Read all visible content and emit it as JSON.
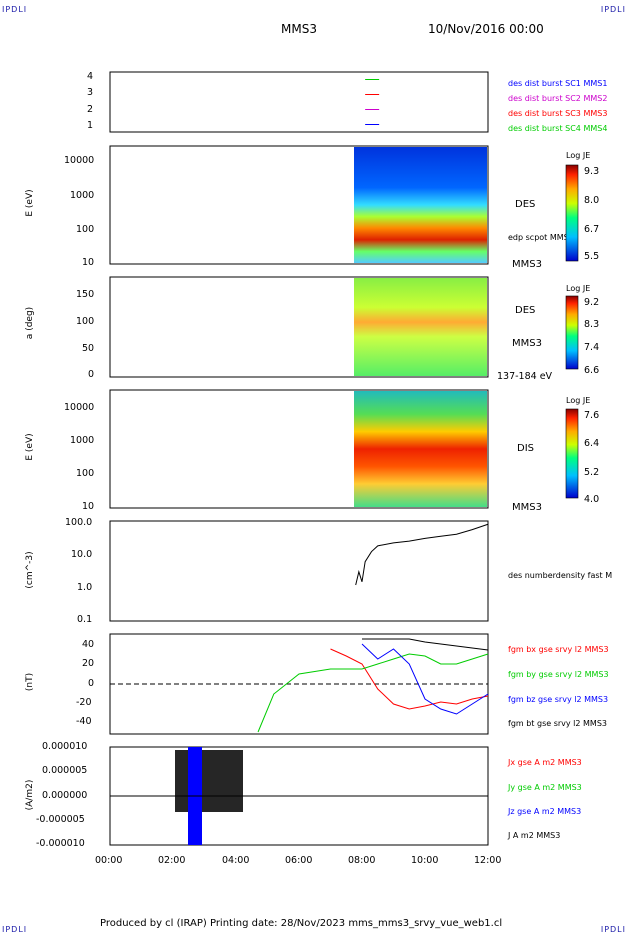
{
  "header": {
    "corner_tl": "IPDLI",
    "corner_tr": "IPDLI",
    "corner_bl": "IPDLI",
    "corner_br": "IPDLI",
    "mission": "MMS3",
    "date": "10/Nov/2016 00:00"
  },
  "footer": "Produced by cl (IRAP)   Printing date: 28/Nov/2023   mms_mms3_srvy_vue_web1.cl",
  "colors": {
    "axis": "#000000",
    "p1": "#0000ff",
    "p2": "#cc00cc",
    "p3": "#ff0000",
    "p4": "#00cc00"
  },
  "chart_data": [
    {
      "type": "line",
      "name": "availability",
      "yticks": [
        "1",
        "2",
        "3",
        "4"
      ],
      "series": [
        {
          "name": "des dist burst SC1 MMS1",
          "color": "#0000ff",
          "x_hours": [
            8.1,
            8.7
          ],
          "y": 1
        },
        {
          "name": "des dist burst SC2 MMS2",
          "color": "#cc00cc",
          "x_hours": [
            8.1,
            8.7
          ],
          "y": 2
        },
        {
          "name": "des dist burst SC3 MMS3",
          "color": "#ff0000",
          "x_hours": [
            8.1,
            8.7
          ],
          "y": 3
        },
        {
          "name": "des dist burst SC4 MMS4",
          "color": "#00cc00",
          "x_hours": [
            8.1,
            8.7
          ],
          "y": 4
        }
      ]
    },
    {
      "type": "heatmap",
      "name": "des-energy",
      "ylabel": "E (eV)",
      "yticks": [
        "10",
        "100",
        "1000",
        "10000"
      ],
      "right_labels": [
        "DES",
        "edp scpot MMS3",
        "MMS3"
      ],
      "colorbar": {
        "title": "Log JE",
        "ticks": [
          "9.3",
          "8.0",
          "6.7",
          "5.5"
        ],
        "range": [
          5.5,
          9.3
        ]
      },
      "data_start_hour": 7.7
    },
    {
      "type": "heatmap",
      "name": "des-pitch",
      "ylabel": "a (deg)",
      "yticks": [
        "0",
        "50",
        "100",
        "150"
      ],
      "right_labels": [
        "DES",
        "MMS3",
        "137-184 eV"
      ],
      "colorbar": {
        "title": "Log JE",
        "ticks": [
          "9.2",
          "8.3",
          "7.4",
          "6.6"
        ],
        "range": [
          6.6,
          9.2
        ]
      },
      "data_start_hour": 7.7
    },
    {
      "type": "heatmap",
      "name": "dis-energy",
      "ylabel": "E (eV)",
      "yticks": [
        "10",
        "100",
        "1000",
        "10000"
      ],
      "right_labels": [
        "DIS",
        "MMS3"
      ],
      "colorbar": {
        "title": "Log JE",
        "ticks": [
          "7.6",
          "6.4",
          "5.2",
          "4.0"
        ],
        "range": [
          4.0,
          7.6
        ]
      },
      "data_start_hour": 7.7
    },
    {
      "type": "line",
      "name": "density",
      "ylabel": "(cm^-3)",
      "yticks": [
        "0.1",
        "1.0",
        "10.0",
        "100.0"
      ],
      "legend": "des numberdensity fast M",
      "series": [
        {
          "name": "des numberdensity fast",
          "color": "#000000",
          "x": [
            7.8,
            7.9,
            8.0,
            8.1,
            8.3,
            8.5,
            9.0,
            9.5,
            10.0,
            10.5,
            11.0,
            11.5,
            12.0
          ],
          "y": [
            1.2,
            3.0,
            1.5,
            6.0,
            12,
            18,
            22,
            25,
            30,
            35,
            40,
            55,
            80
          ]
        }
      ]
    },
    {
      "type": "line",
      "name": "magnetic-field",
      "ylabel": "(nT)",
      "yticks": [
        "-40",
        "-20",
        "0",
        "20",
        "40"
      ],
      "legend": [
        "fgm bx gse srvy l2 MMS3",
        "fgm by gse srvy l2 MMS3",
        "fgm bz gse srvy l2 MMS3",
        "fgm bt gse srvy l2 MMS3"
      ],
      "series": [
        {
          "name": "fgm bx gse srvy l2 MMS3",
          "color": "#ff0000",
          "x": [
            7.0,
            7.5,
            8.0,
            8.5,
            9.0,
            9.5,
            10,
            10.5,
            11,
            11.5,
            12
          ],
          "y": [
            35,
            28,
            20,
            -5,
            -20,
            -25,
            -22,
            -18,
            -20,
            -15,
            -12
          ]
        },
        {
          "name": "fgm by gse srvy l2 MMS3",
          "color": "#00cc00",
          "x": [
            4.7,
            5.2,
            6.0,
            7.0,
            8.0,
            8.5,
            9,
            9.5,
            10,
            10.5,
            11,
            11.5,
            12
          ],
          "y": [
            -48,
            -10,
            10,
            15,
            15,
            20,
            25,
            30,
            28,
            20,
            20,
            25,
            30
          ]
        },
        {
          "name": "fgm bz gse srvy l2 MMS3",
          "color": "#0000ff",
          "x": [
            8.0,
            8.5,
            9,
            9.5,
            10,
            10.5,
            11,
            11.5,
            12
          ],
          "y": [
            40,
            25,
            35,
            20,
            -15,
            -25,
            -30,
            -20,
            -10
          ]
        },
        {
          "name": "fgm bt gse srvy l2 MMS3",
          "color": "#000000",
          "x": [
            8.0,
            8.5,
            9,
            9.5,
            10,
            10.5,
            11,
            11.5,
            12
          ],
          "y": [
            45,
            45,
            45,
            45,
            42,
            40,
            38,
            36,
            34
          ]
        }
      ]
    },
    {
      "type": "line",
      "name": "current-density",
      "ylabel": "(A/m2)",
      "yticks": [
        "-0.000010",
        "-0.000005",
        "0.000000",
        "0.000005",
        "0.000010"
      ],
      "legend": [
        "Jx gse A m2 MMS3",
        "Jy gse A m2 MMS3",
        "Jz gse A m2 MMS3",
        "J A m2 MMS3"
      ],
      "xticks": [
        "00:00",
        "02:00",
        "04:00",
        "06:00",
        "08:00",
        "10:00",
        "12:00"
      ]
    }
  ]
}
